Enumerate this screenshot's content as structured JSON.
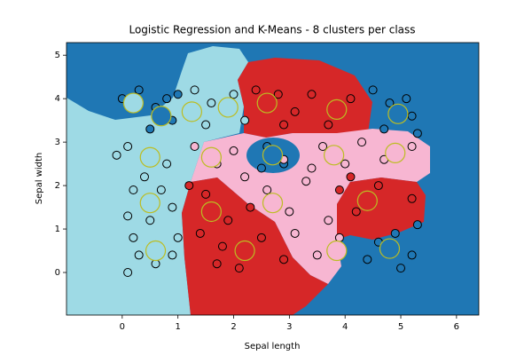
{
  "chart_data": {
    "type": "scatter",
    "title": "Logistic Regression and K-Means - 8 clusters per class",
    "x_label": "Sepal length",
    "y_label": "Sepal width",
    "xlim": [
      -1.0,
      6.4
    ],
    "ylim": [
      -0.98,
      5.29
    ],
    "xticks": [
      0,
      1,
      2,
      3,
      4,
      5,
      6
    ],
    "yticks": [
      0,
      1,
      2,
      3,
      4,
      5
    ],
    "edge_color": "#000000",
    "series": [
      {
        "color": "#1f77b4",
        "x": [
          0.0,
          0.3,
          0.6,
          0.8,
          0.9,
          1.0,
          0.5,
          4.5,
          4.8,
          5.1,
          5.2,
          4.7,
          5.3,
          4.4,
          4.9,
          5.2,
          5.0,
          4.6,
          5.3,
          2.5,
          2.9,
          2.6
        ],
        "y": [
          4.0,
          4.2,
          3.8,
          4.0,
          3.5,
          4.1,
          3.3,
          4.2,
          3.9,
          4.0,
          3.6,
          3.3,
          3.2,
          0.3,
          0.9,
          0.4,
          0.1,
          0.7,
          1.1,
          2.4,
          2.5,
          2.9
        ]
      },
      {
        "color": "#9edae5",
        "x": [
          -0.1,
          0.1,
          0.4,
          0.8,
          0.2,
          0.7,
          0.1,
          0.5,
          0.9,
          0.2,
          0.6,
          0.9,
          0.1,
          1.0,
          1.3,
          1.6,
          2.0,
          2.2,
          1.5,
          0.3
        ],
        "y": [
          2.7,
          2.9,
          2.2,
          2.5,
          1.9,
          1.9,
          1.3,
          1.2,
          1.5,
          0.8,
          0.2,
          0.4,
          0.0,
          0.8,
          4.2,
          3.9,
          4.1,
          3.5,
          3.4,
          0.4
        ]
      },
      {
        "color": "#d62728",
        "x": [
          2.4,
          2.8,
          3.1,
          3.4,
          3.7,
          4.1,
          2.9,
          1.2,
          1.5,
          1.9,
          1.4,
          1.8,
          2.1,
          2.5,
          2.9,
          2.3,
          1.7,
          3.9,
          4.2,
          4.6,
          5.2,
          4.1
        ],
        "y": [
          4.2,
          4.1,
          3.7,
          4.1,
          3.4,
          4.0,
          3.4,
          2.0,
          1.8,
          1.2,
          0.9,
          0.6,
          0.1,
          0.8,
          0.3,
          1.5,
          0.2,
          1.9,
          1.4,
          2.0,
          1.7,
          2.2
        ]
      },
      {
        "color": "#f7b6d2",
        "x": [
          1.3,
          1.7,
          2.0,
          2.2,
          2.6,
          3.0,
          3.3,
          3.6,
          4.0,
          4.3,
          4.7,
          5.2,
          3.1,
          3.5,
          3.9,
          3.4,
          3.7,
          2.9
        ],
        "y": [
          2.9,
          2.5,
          2.8,
          2.2,
          1.9,
          1.4,
          2.1,
          2.9,
          2.5,
          3.0,
          2.6,
          2.9,
          0.9,
          0.4,
          0.8,
          2.4,
          1.2,
          2.6
        ]
      }
    ],
    "centers": {
      "edge_color": "#bcbd22",
      "x": [
        0.2,
        0.7,
        1.25,
        1.9,
        2.6,
        3.85,
        4.95,
        0.5,
        1.6,
        2.7,
        3.8,
        4.9,
        0.5,
        1.6,
        2.7,
        4.4,
        0.6,
        2.2,
        3.85,
        4.8
      ],
      "y": [
        3.9,
        3.6,
        3.7,
        3.8,
        3.9,
        3.75,
        3.65,
        2.65,
        2.65,
        2.7,
        2.7,
        2.75,
        1.6,
        1.4,
        1.6,
        1.65,
        0.5,
        0.5,
        0.5,
        0.55
      ],
      "colors": [
        "#9edae5",
        "#1f77b4",
        "#9edae5",
        "#9edae5",
        "#d62728",
        "#d62728",
        "#1f77b4",
        "#9edae5",
        "#f7b6d2",
        "#1f77b4",
        "#f7b6d2",
        "#f7b6d2",
        "#9edae5",
        "#d62728",
        "#f7b6d2",
        "#d62728",
        "#9edae5",
        "#d62728",
        "#f7b6d2",
        "#1f77b4"
      ]
    }
  }
}
